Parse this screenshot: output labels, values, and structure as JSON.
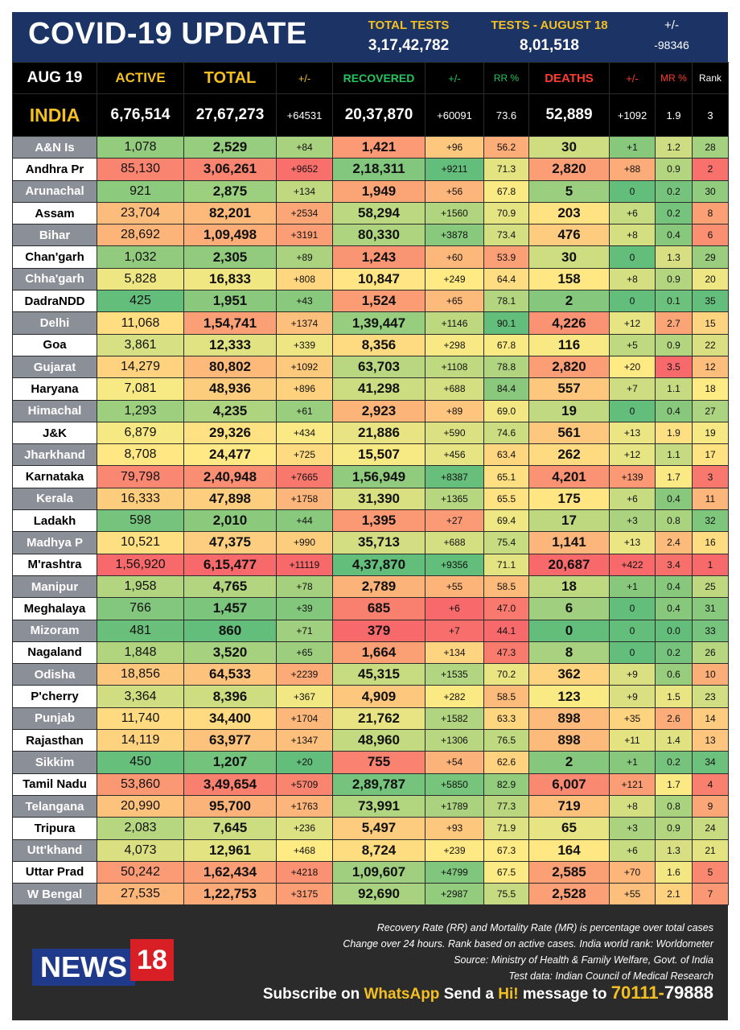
{
  "header": {
    "title": "COVID-19 UPDATE",
    "total_tests_label": "TOTAL TESTS",
    "total_tests": "3,17,42,782",
    "tests_day_label": "TESTS - AUGUST 18",
    "tests_day": "8,01,518",
    "change_label": "+/-",
    "change": "-98346"
  },
  "columns": {
    "date": "AUG 19",
    "active": "ACTIVE",
    "total": "TOTAL",
    "total_change": "+/-",
    "recovered": "RECOVERED",
    "recovered_change": "+/-",
    "rr": "RR %",
    "deaths": "DEATHS",
    "deaths_change": "+/-",
    "mr": "MR %",
    "rank": "Rank"
  },
  "india": {
    "name": "INDIA",
    "active": "6,76,514",
    "total": "27,67,273",
    "total_change": "+64531",
    "recovered": "20,37,870",
    "recovered_change": "+60091",
    "rr": "73.6",
    "deaths": "52,889",
    "deaths_change": "+1092",
    "mr": "1.9",
    "rank": "3"
  },
  "rows": [
    {
      "name": "A&N Is",
      "active": "1,078",
      "total": "2,529",
      "tc": "+84",
      "rec": "1,421",
      "rc": "+96",
      "rr": "56.2",
      "deaths": "30",
      "dc": "+1",
      "mr": "1.2",
      "rank": "28"
    },
    {
      "name": "Andhra Pr",
      "active": "85,130",
      "total": "3,06,261",
      "tc": "+9652",
      "rec": "2,18,311",
      "rc": "+9211",
      "rr": "71.3",
      "deaths": "2,820",
      "dc": "+88",
      "mr": "0.9",
      "rank": "2"
    },
    {
      "name": "Arunachal",
      "active": "921",
      "total": "2,875",
      "tc": "+134",
      "rec": "1,949",
      "rc": "+56",
      "rr": "67.8",
      "deaths": "5",
      "dc": "0",
      "mr": "0.2",
      "rank": "30"
    },
    {
      "name": "Assam",
      "active": "23,704",
      "total": "82,201",
      "tc": "+2534",
      "rec": "58,294",
      "rc": "+1560",
      "rr": "70.9",
      "deaths": "203",
      "dc": "+6",
      "mr": "0.2",
      "rank": "8"
    },
    {
      "name": "Bihar",
      "active": "28,692",
      "total": "1,09,498",
      "tc": "+3191",
      "rec": "80,330",
      "rc": "+3878",
      "rr": "73.4",
      "deaths": "476",
      "dc": "+8",
      "mr": "0.4",
      "rank": "6"
    },
    {
      "name": "Chan'garh",
      "active": "1,032",
      "total": "2,305",
      "tc": "+89",
      "rec": "1,243",
      "rc": "+60",
      "rr": "53.9",
      "deaths": "30",
      "dc": "0",
      "mr": "1.3",
      "rank": "29"
    },
    {
      "name": "Chha'garh",
      "active": "5,828",
      "total": "16,833",
      "tc": "+808",
      "rec": "10,847",
      "rc": "+249",
      "rr": "64.4",
      "deaths": "158",
      "dc": "+8",
      "mr": "0.9",
      "rank": "20"
    },
    {
      "name": "DadraNDD",
      "active": "425",
      "total": "1,951",
      "tc": "+43",
      "rec": "1,524",
      "rc": "+65",
      "rr": "78.1",
      "deaths": "2",
      "dc": "0",
      "mr": "0.1",
      "rank": "35"
    },
    {
      "name": "Delhi",
      "active": "11,068",
      "total": "1,54,741",
      "tc": "+1374",
      "rec": "1,39,447",
      "rc": "+1146",
      "rr": "90.1",
      "deaths": "4,226",
      "dc": "+12",
      "mr": "2.7",
      "rank": "15"
    },
    {
      "name": "Goa",
      "active": "3,861",
      "total": "12,333",
      "tc": "+339",
      "rec": "8,356",
      "rc": "+298",
      "rr": "67.8",
      "deaths": "116",
      "dc": "+5",
      "mr": "0.9",
      "rank": "22"
    },
    {
      "name": "Gujarat",
      "active": "14,279",
      "total": "80,802",
      "tc": "+1092",
      "rec": "63,703",
      "rc": "+1108",
      "rr": "78.8",
      "deaths": "2,820",
      "dc": "+20",
      "mr": "3.5",
      "rank": "12"
    },
    {
      "name": "Haryana",
      "active": "7,081",
      "total": "48,936",
      "tc": "+896",
      "rec": "41,298",
      "rc": "+688",
      "rr": "84.4",
      "deaths": "557",
      "dc": "+7",
      "mr": "1.1",
      "rank": "18"
    },
    {
      "name": "Himachal",
      "active": "1,293",
      "total": "4,235",
      "tc": "+61",
      "rec": "2,923",
      "rc": "+89",
      "rr": "69.0",
      "deaths": "19",
      "dc": "0",
      "mr": "0.4",
      "rank": "27"
    },
    {
      "name": "J&K",
      "active": "6,879",
      "total": "29,326",
      "tc": "+434",
      "rec": "21,886",
      "rc": "+590",
      "rr": "74.6",
      "deaths": "561",
      "dc": "+13",
      "mr": "1.9",
      "rank": "19"
    },
    {
      "name": "Jharkhand",
      "active": "8,708",
      "total": "24,477",
      "tc": "+725",
      "rec": "15,507",
      "rc": "+456",
      "rr": "63.4",
      "deaths": "262",
      "dc": "+12",
      "mr": "1.1",
      "rank": "17"
    },
    {
      "name": "Karnataka",
      "active": "79,798",
      "total": "2,40,948",
      "tc": "+7665",
      "rec": "1,56,949",
      "rc": "+8387",
      "rr": "65.1",
      "deaths": "4,201",
      "dc": "+139",
      "mr": "1.7",
      "rank": "3"
    },
    {
      "name": "Kerala",
      "active": "16,333",
      "total": "47,898",
      "tc": "+1758",
      "rec": "31,390",
      "rc": "+1365",
      "rr": "65.5",
      "deaths": "175",
      "dc": "+6",
      "mr": "0.4",
      "rank": "11"
    },
    {
      "name": "Ladakh",
      "active": "598",
      "total": "2,010",
      "tc": "+44",
      "rec": "1,395",
      "rc": "+27",
      "rr": "69.4",
      "deaths": "17",
      "dc": "+3",
      "mr": "0.8",
      "rank": "32"
    },
    {
      "name": "Madhya P",
      "active": "10,521",
      "total": "47,375",
      "tc": "+990",
      "rec": "35,713",
      "rc": "+688",
      "rr": "75.4",
      "deaths": "1,141",
      "dc": "+13",
      "mr": "2.4",
      "rank": "16"
    },
    {
      "name": "M'rashtra",
      "active": "1,56,920",
      "total": "6,15,477",
      "tc": "+11119",
      "rec": "4,37,870",
      "rc": "+9356",
      "rr": "71.1",
      "deaths": "20,687",
      "dc": "+422",
      "mr": "3.4",
      "rank": "1"
    },
    {
      "name": "Manipur",
      "active": "1,958",
      "total": "4,765",
      "tc": "+78",
      "rec": "2,789",
      "rc": "+55",
      "rr": "58.5",
      "deaths": "18",
      "dc": "+1",
      "mr": "0.4",
      "rank": "25"
    },
    {
      "name": "Meghalaya",
      "active": "766",
      "total": "1,457",
      "tc": "+39",
      "rec": "685",
      "rc": "+6",
      "rr": "47.0",
      "deaths": "6",
      "dc": "0",
      "mr": "0.4",
      "rank": "31"
    },
    {
      "name": "Mizoram",
      "active": "481",
      "total": "860",
      "tc": "+71",
      "rec": "379",
      "rc": "+7",
      "rr": "44.1",
      "deaths": "0",
      "dc": "0",
      "mr": "0.0",
      "rank": "33"
    },
    {
      "name": "Nagaland",
      "active": "1,848",
      "total": "3,520",
      "tc": "+65",
      "rec": "1,664",
      "rc": "+134",
      "rr": "47.3",
      "deaths": "8",
      "dc": "0",
      "mr": "0.2",
      "rank": "26"
    },
    {
      "name": "Odisha",
      "active": "18,856",
      "total": "64,533",
      "tc": "+2239",
      "rec": "45,315",
      "rc": "+1535",
      "rr": "70.2",
      "deaths": "362",
      "dc": "+9",
      "mr": "0.6",
      "rank": "10"
    },
    {
      "name": "P'cherry",
      "active": "3,364",
      "total": "8,396",
      "tc": "+367",
      "rec": "4,909",
      "rc": "+282",
      "rr": "58.5",
      "deaths": "123",
      "dc": "+9",
      "mr": "1.5",
      "rank": "23"
    },
    {
      "name": "Punjab",
      "active": "11,740",
      "total": "34,400",
      "tc": "+1704",
      "rec": "21,762",
      "rc": "+1582",
      "rr": "63.3",
      "deaths": "898",
      "dc": "+35",
      "mr": "2.6",
      "rank": "14"
    },
    {
      "name": "Rajasthan",
      "active": "14,119",
      "total": "63,977",
      "tc": "+1347",
      "rec": "48,960",
      "rc": "+1306",
      "rr": "76.5",
      "deaths": "898",
      "dc": "+11",
      "mr": "1.4",
      "rank": "13"
    },
    {
      "name": "Sikkim",
      "active": "450",
      "total": "1,207",
      "tc": "+20",
      "rec": "755",
      "rc": "+54",
      "rr": "62.6",
      "deaths": "2",
      "dc": "+1",
      "mr": "0.2",
      "rank": "34"
    },
    {
      "name": "Tamil Nadu",
      "active": "53,860",
      "total": "3,49,654",
      "tc": "+5709",
      "rec": "2,89,787",
      "rc": "+5850",
      "rr": "82.9",
      "deaths": "6,007",
      "dc": "+121",
      "mr": "1.7",
      "rank": "4"
    },
    {
      "name": "Telangana",
      "active": "20,990",
      "total": "95,700",
      "tc": "+1763",
      "rec": "73,991",
      "rc": "+1789",
      "rr": "77.3",
      "deaths": "719",
      "dc": "+8",
      "mr": "0.8",
      "rank": "9"
    },
    {
      "name": "Tripura",
      "active": "2,083",
      "total": "7,645",
      "tc": "+236",
      "rec": "5,497",
      "rc": "+93",
      "rr": "71.9",
      "deaths": "65",
      "dc": "+3",
      "mr": "0.9",
      "rank": "24"
    },
    {
      "name": "Utt'khand",
      "active": "4,073",
      "total": "12,961",
      "tc": "+468",
      "rec": "8,724",
      "rc": "+239",
      "rr": "67.3",
      "deaths": "164",
      "dc": "+6",
      "mr": "1.3",
      "rank": "21"
    },
    {
      "name": "Uttar Prad",
      "active": "50,242",
      "total": "1,62,434",
      "tc": "+4218",
      "rec": "1,09,607",
      "rc": "+4799",
      "rr": "67.5",
      "deaths": "2,585",
      "dc": "+70",
      "mr": "1.6",
      "rank": "5"
    },
    {
      "name": "W Bengal",
      "active": "27,535",
      "total": "1,22,753",
      "tc": "+3175",
      "rec": "92,690",
      "rc": "+2987",
      "rr": "75.5",
      "deaths": "2,528",
      "dc": "+55",
      "mr": "2.1",
      "rank": "7"
    }
  ],
  "footer": {
    "note1": "Recovery Rate (RR) and Mortality Rate (MR) is percentage over total cases",
    "note2": "Change over 24 hours. Rank based on active cases. India world rank: Worldometer",
    "note3": "Source: Ministry of Health & Family Welfare, Govt. of India",
    "note4": "Test data: Indian Council of Medical Research",
    "logo_text": "NEWS",
    "logo_num": "18",
    "sub_1": "Subscribe on",
    "sub_whatsapp": "WhatsApp",
    "sub_2": "Send a",
    "sub_hi": "Hi!",
    "sub_3": "message to",
    "phone_a": "70111-",
    "phone_b": "79888"
  },
  "colors": {
    "header_bg": "#1c3366",
    "accent_yellow": "#f4c021",
    "recovered_green": "#22c55e",
    "deaths_red": "#ff3b2f",
    "scale_green": "#63be7b",
    "scale_yellow": "#ffeb84",
    "scale_red": "#f8696b"
  }
}
